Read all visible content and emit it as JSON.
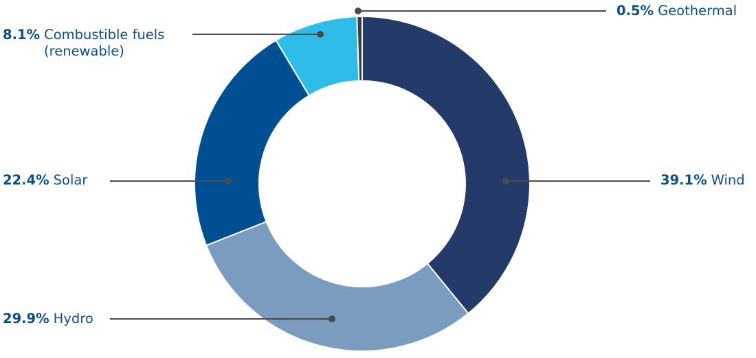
{
  "chart_data": {
    "type": "pie",
    "variant": "donut",
    "slices": [
      {
        "label": "Wind",
        "percent_label": "39.1%",
        "value": 39.1,
        "color": "#243a69"
      },
      {
        "label": "Hydro",
        "percent_label": "29.9%",
        "value": 29.9,
        "color": "#7a9cbf"
      },
      {
        "label": "Solar",
        "percent_label": "22.4%",
        "value": 22.4,
        "color": "#004f93"
      },
      {
        "label": "Combustible fuels",
        "label_line2": "(renewable)",
        "percent_label": "8.1%",
        "value": 8.1,
        "color": "#2ebde8"
      },
      {
        "label": "Geothermal",
        "percent_label": "0.5%",
        "value": 0.5,
        "color": "#3c3c3c"
      }
    ],
    "leader_color": "#4a4a4a",
    "label_color": "#0c4d8a"
  }
}
